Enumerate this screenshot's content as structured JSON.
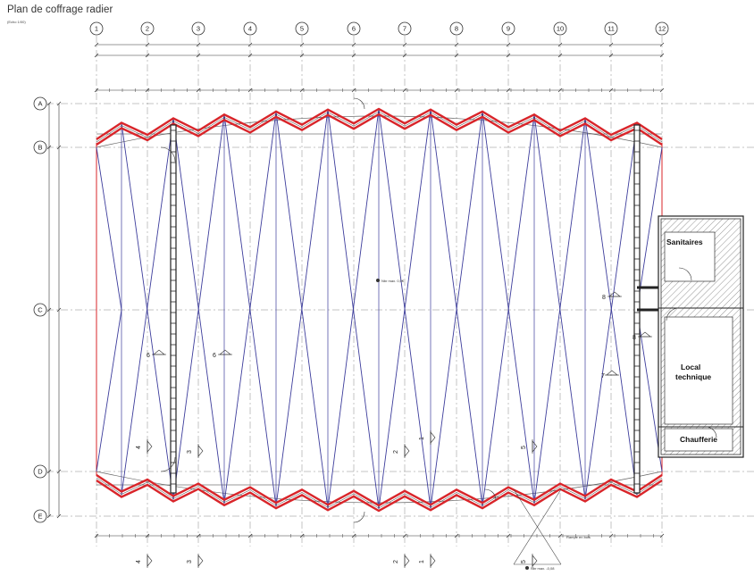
{
  "title": "Plan de coffrage radier",
  "subtitle": "(Echo 1/00)",
  "grid": {
    "columns": [
      "1",
      "2",
      "3",
      "4",
      "5",
      "6",
      "7",
      "8",
      "9",
      "10",
      "11",
      "12"
    ],
    "rows": [
      "A",
      "B",
      "C",
      "D",
      "E"
    ]
  },
  "rooms": {
    "sanitaires": "Sanitaires",
    "local_technique_1": "Local",
    "local_technique_2": "technique",
    "chaufferie": "Chaufferie"
  },
  "annotations": {
    "niveau_center": "Nbr max. 0,0€",
    "rampe": "Rampe en bois",
    "niveau_bottom": "Nbr max. -0,08"
  },
  "sections": [
    "6",
    "6",
    "4",
    "3",
    "2",
    "1",
    "5",
    "7",
    "8",
    "8",
    "4",
    "3",
    "2",
    "1",
    "5"
  ],
  "colors": {
    "structure_red": "#d9252a",
    "diagonal_blue": "#3d3d9c",
    "line_dark": "#222222",
    "hatch": "#555555"
  }
}
